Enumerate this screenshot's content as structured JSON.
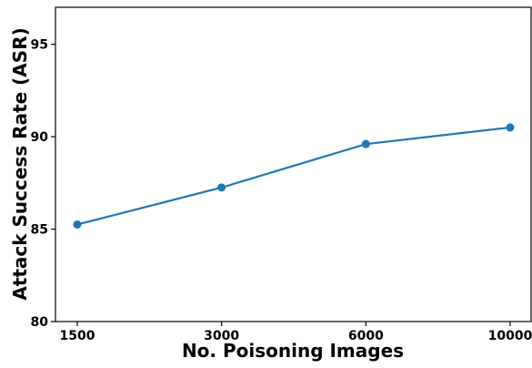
{
  "chart_data": {
    "type": "line",
    "title": "",
    "xlabel": "No. Poisoning Images",
    "ylabel": "Attack Success Rate (ASR)",
    "categories": [
      "1500",
      "3000",
      "6000",
      "10000"
    ],
    "series": [
      {
        "values": [
          85.25,
          87.25,
          89.6,
          90.5
        ],
        "color": "#1f77b4"
      }
    ],
    "ylim": [
      80,
      97
    ],
    "yticks": [
      80,
      85,
      90,
      95
    ],
    "grid": false,
    "legend": "none",
    "marker": "circle"
  }
}
